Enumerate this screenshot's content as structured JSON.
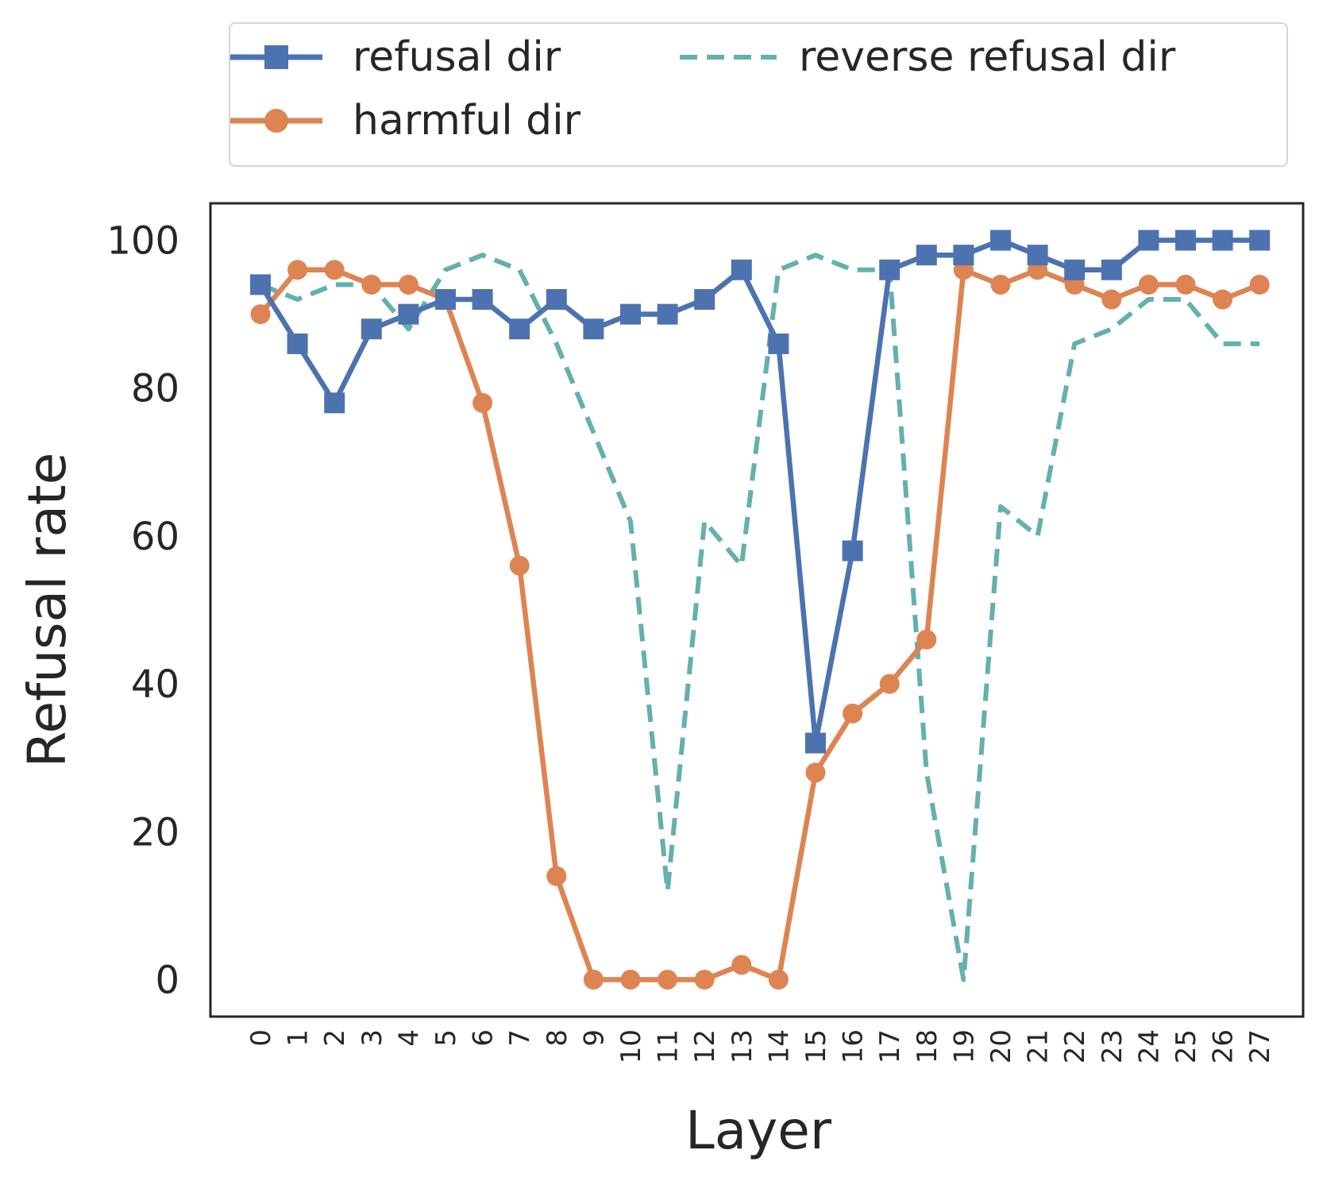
{
  "chart_data": {
    "type": "line",
    "xlabel": "Layer",
    "ylabel": "Refusal rate",
    "x": [
      0,
      1,
      2,
      3,
      4,
      5,
      6,
      7,
      8,
      9,
      10,
      11,
      12,
      13,
      14,
      15,
      16,
      17,
      18,
      19,
      20,
      21,
      22,
      23,
      24,
      25,
      26,
      27
    ],
    "x_tick_labels": [
      "0",
      "1",
      "2",
      "3",
      "4",
      "5",
      "6",
      "7",
      "8",
      "9",
      "10",
      "11",
      "12",
      "13",
      "14",
      "15",
      "16",
      "17",
      "18",
      "19",
      "20",
      "21",
      "22",
      "23",
      "24",
      "25",
      "26",
      "27"
    ],
    "y_ticks": [
      "0",
      "20",
      "40",
      "60",
      "80",
      "100"
    ],
    "ylim": [
      -5,
      105
    ],
    "grid": false,
    "legend_position": "above plot, two columns",
    "series": [
      {
        "name": "refusal dir",
        "color": "#4c72b0",
        "marker": "square",
        "linestyle": "solid",
        "values": [
          94,
          86,
          78,
          88,
          90,
          92,
          92,
          88,
          92,
          88,
          90,
          90,
          92,
          96,
          86,
          32,
          58,
          96,
          98,
          98,
          100,
          98,
          96,
          96,
          100,
          100,
          100,
          100
        ]
      },
      {
        "name": "harmful dir",
        "color": "#dd8452",
        "marker": "circle",
        "linestyle": "solid",
        "values": [
          90,
          96,
          96,
          94,
          94,
          92,
          78,
          56,
          14,
          0,
          0,
          0,
          0,
          2,
          0,
          28,
          36,
          40,
          46,
          96,
          94,
          96,
          94,
          92,
          94,
          94,
          92,
          94
        ]
      },
      {
        "name": "reverse refusal dir",
        "color": "#64b0ad",
        "marker": "none",
        "linestyle": "dashed",
        "values": [
          94,
          92,
          94,
          94,
          88,
          96,
          98,
          96,
          86,
          74,
          62,
          12,
          62,
          56,
          96,
          98,
          96,
          96,
          28,
          0,
          64,
          60,
          86,
          88,
          92,
          92,
          86,
          86
        ]
      }
    ]
  }
}
